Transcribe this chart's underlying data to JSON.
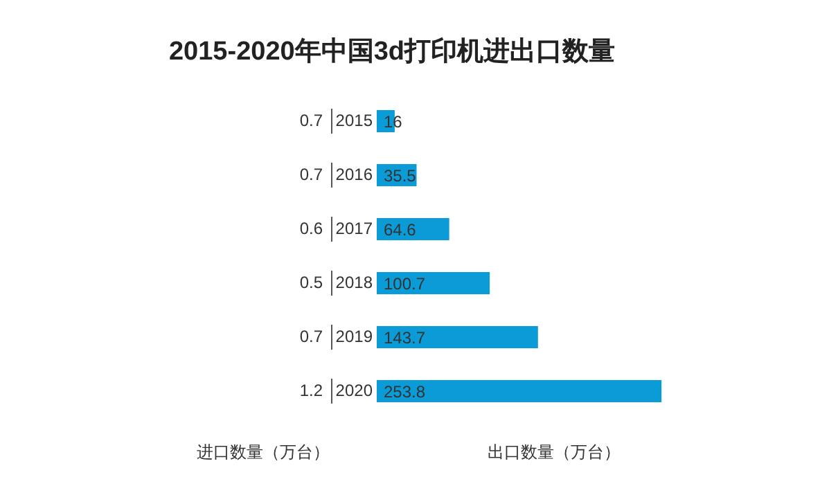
{
  "chart_data": {
    "type": "bar",
    "orientation": "horizontal",
    "title": "2015-2020年中国3d打印机进出口数量",
    "categories": [
      "2015",
      "2016",
      "2017",
      "2018",
      "2019",
      "2020"
    ],
    "series": [
      {
        "name": "出口数量（万台）",
        "color": "#0b9cd8",
        "values": [
          16,
          35.5,
          64.6,
          100.7,
          143.7,
          253.8
        ]
      }
    ],
    "annotations": [
      "进口数量（万台）",
      "0.7",
      "0.7",
      "0.6",
      "0.5",
      "0.7",
      "1.2"
    ],
    "data_labels": true,
    "grid": false,
    "legend": false
  }
}
